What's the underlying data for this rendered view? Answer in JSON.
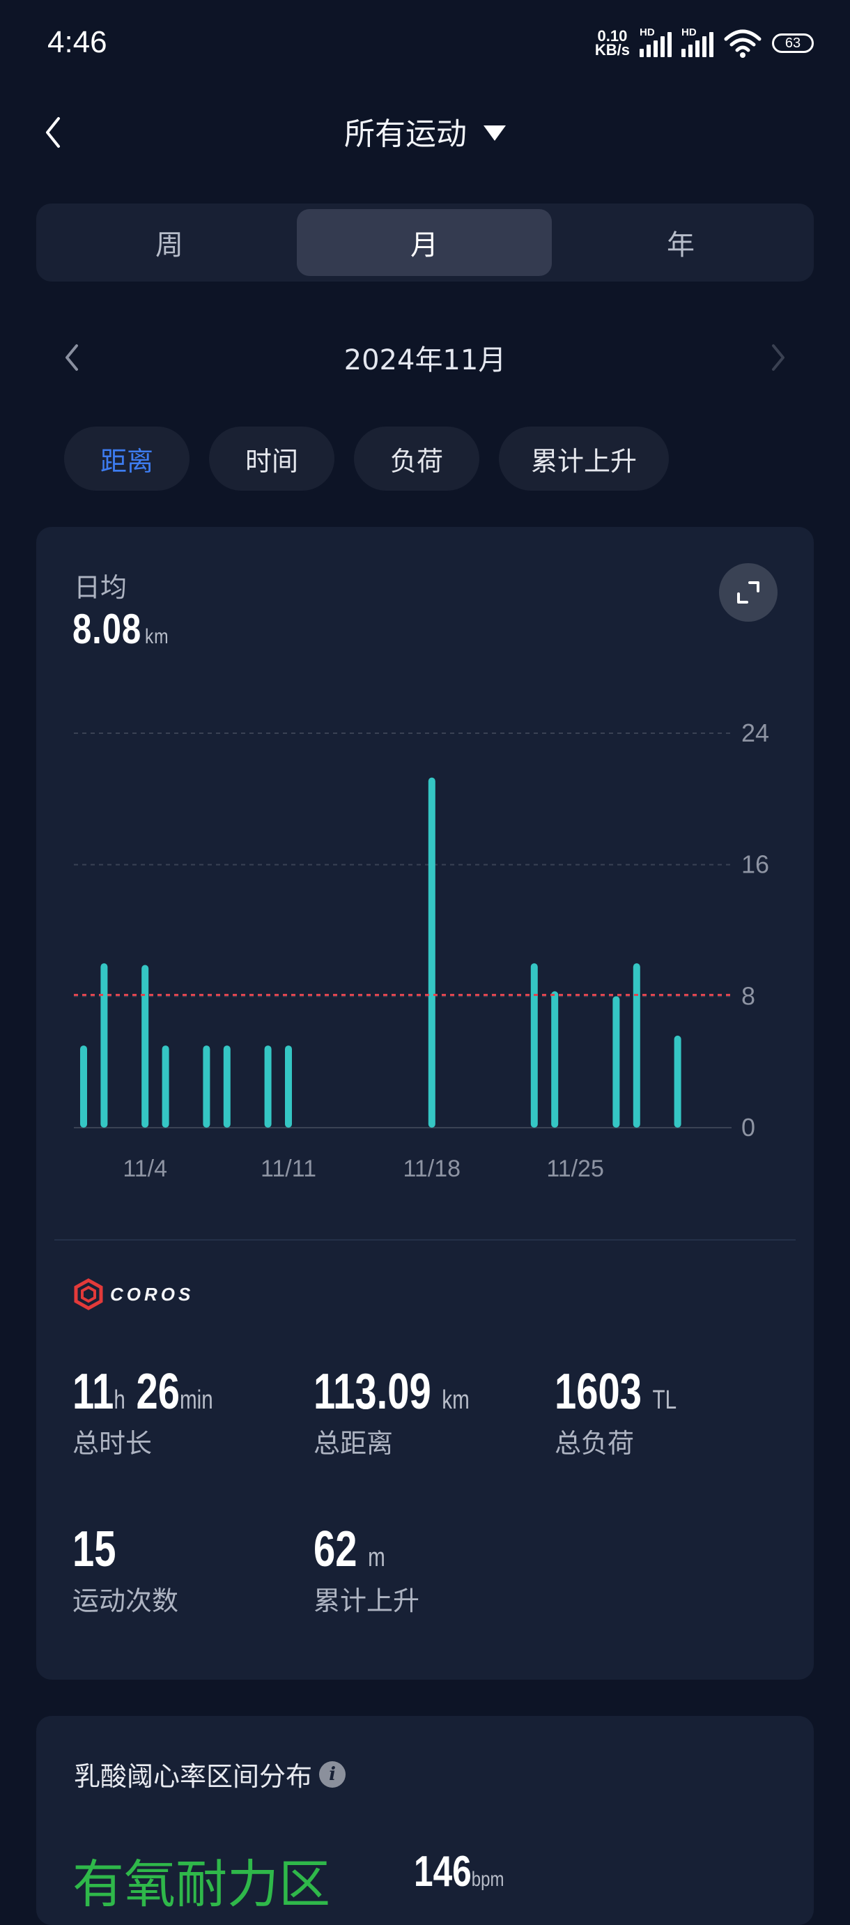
{
  "status_bar": {
    "time": "4:46",
    "net_speed_value": "0.10",
    "net_speed_unit": "KB/s",
    "sim1_tag": "HD",
    "sim2_tag": "HD",
    "battery": "63"
  },
  "header": {
    "title": "所有运动"
  },
  "period_tabs": [
    {
      "label": "周",
      "active": false
    },
    {
      "label": "月",
      "active": true
    },
    {
      "label": "年",
      "active": false
    }
  ],
  "month_nav": {
    "label": "2024年11月"
  },
  "metric_chips": [
    {
      "label": "距离",
      "active": true
    },
    {
      "label": "时间",
      "active": false
    },
    {
      "label": "负荷",
      "active": false
    },
    {
      "label": "累计上升",
      "active": false
    }
  ],
  "summary": {
    "avg_label": "日均",
    "avg_value": "8.08",
    "avg_unit": "km"
  },
  "chart_data": {
    "type": "bar",
    "days": [
      1,
      2,
      4,
      5,
      7,
      8,
      10,
      11,
      18,
      23,
      24,
      27,
      28,
      30
    ],
    "values": [
      5.0,
      10.0,
      9.9,
      5.0,
      5.0,
      5.0,
      5.0,
      5.0,
      21.3,
      10.0,
      8.3,
      8.0,
      10.0,
      5.6
    ],
    "x_ticks": [
      "11/4",
      "11/11",
      "11/18",
      "11/25"
    ],
    "x_tick_days": [
      4,
      11,
      18,
      25
    ],
    "y_ticks": [
      "24",
      "16",
      "8",
      "0"
    ],
    "y_tick_values": [
      24,
      16,
      8,
      0
    ],
    "ylim": [
      0,
      24
    ],
    "average_line": 8.08,
    "bar_color": "#35c6c4",
    "average_color": "#e0444f",
    "grid": true
  },
  "brand": {
    "name": "COROS"
  },
  "stats": [
    {
      "value": "11",
      "unit": "h",
      "value2": "26",
      "unit2": "min",
      "label": "总时长"
    },
    {
      "value": "113.09",
      "unit": "km",
      "label": "总距离"
    },
    {
      "value": "1603",
      "unit": "TL",
      "label": "总负荷"
    },
    {
      "value": "15",
      "unit": "",
      "label": "运动次数"
    },
    {
      "value": "62",
      "unit": "m",
      "label": "累计上升"
    }
  ],
  "lactate_section": {
    "title": "乳酸阈心率区间分布",
    "zone_name": "有氧耐力区",
    "zone_bpm": "146",
    "zone_bpm_unit": "bpm"
  },
  "colors": {
    "background": "#0d1426",
    "card": "#172035",
    "accent_blue": "#3d7cf0",
    "zone_green": "#2fb84a"
  }
}
